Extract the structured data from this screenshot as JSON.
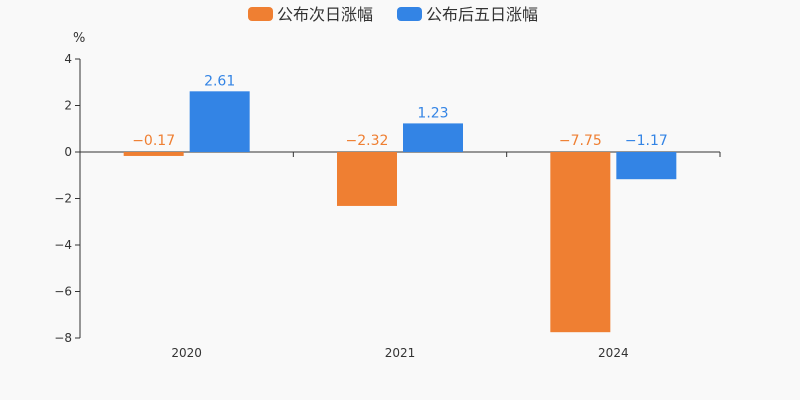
{
  "chart_data": {
    "type": "bar",
    "unit": "%",
    "categories": [
      "2020",
      "2021",
      "2024"
    ],
    "series": [
      {
        "name": "公布次日涨幅",
        "values": [
          -0.17,
          -2.32,
          -7.75
        ],
        "color": "#ef7f32",
        "labels": [
          "−0.17",
          "−2.32",
          "−7.75"
        ]
      },
      {
        "name": "公布后五日涨幅",
        "values": [
          2.61,
          1.23,
          -1.17
        ],
        "color": "#3384e5",
        "labels": [
          "2.61",
          "1.23",
          "−1.17"
        ]
      }
    ],
    "ylim": [
      -8,
      4
    ],
    "yticks": [
      4,
      2,
      0,
      -2,
      -4,
      -6,
      -8
    ],
    "ytick_labels": [
      "4",
      "2",
      "0",
      "−2",
      "−4",
      "−6",
      "−8"
    ],
    "legend_position": "top-center",
    "grid": false
  }
}
